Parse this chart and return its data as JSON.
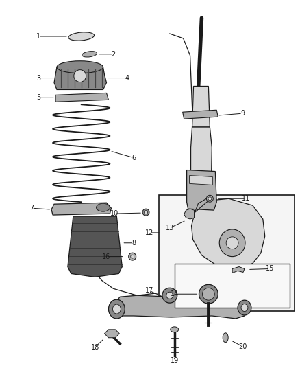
{
  "bg_color": "#ffffff",
  "fig_width": 4.38,
  "fig_height": 5.33,
  "dpi": 100,
  "lc": "#1a1a1a",
  "tc": "#1a1a1a",
  "fs": 7.0,
  "fc_light": "#d8d8d8",
  "fc_mid": "#b0b0b0",
  "fc_dark": "#888888",
  "fc_vdark": "#555555"
}
